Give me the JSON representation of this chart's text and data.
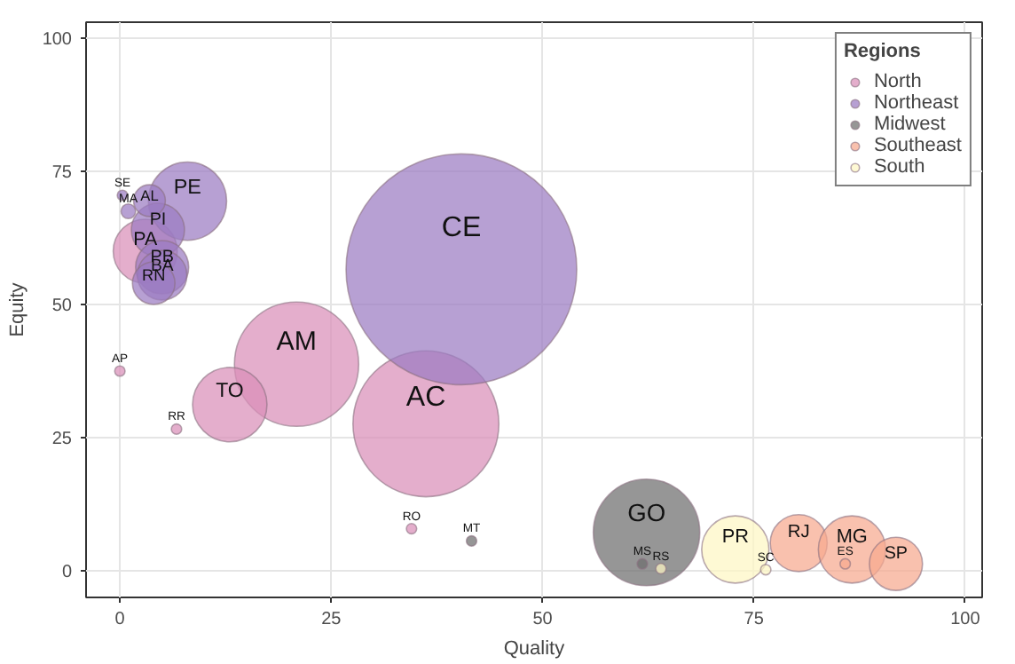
{
  "chart_data": {
    "type": "bubble",
    "xlabel": "Quality",
    "ylabel": "Equity",
    "legend_title": "Regions",
    "xlim": [
      -4,
      102
    ],
    "ylim": [
      -5,
      103
    ],
    "xticks": [
      0,
      25,
      50,
      75,
      100
    ],
    "yticks": [
      0,
      25,
      50,
      75,
      100
    ],
    "grid": true,
    "legend": "top right",
    "marker": "circle",
    "series": [
      {
        "name": "North",
        "color": "#d98fb8",
        "x": [
          36.2,
          20.9,
          13,
          6.7,
          34.5,
          0,
          3
        ],
        "values": [
          27.6,
          38.8,
          31.2,
          26.6,
          7.9,
          37.5,
          60
        ],
        "sizes": [
          0.4,
          0.29,
          0.104,
          0.002,
          0.002,
          0.002,
          0.077
        ]
      },
      {
        "name": "Northeast",
        "color": "#9b7bc2",
        "x": [
          40.4,
          8,
          4.5,
          0.3,
          1,
          3.5,
          5,
          5,
          4
        ],
        "values": [
          56.6,
          69.4,
          64,
          70.5,
          67.5,
          69.5,
          57,
          55.5,
          54
        ],
        "sizes": [
          1,
          0.115,
          0.053,
          0.002,
          0.004,
          0.019,
          0.053,
          0.046,
          0.034
        ]
      },
      {
        "name": "Midwest",
        "color": "#6e6e6e",
        "x": [
          62.3,
          61.8,
          41.6
        ],
        "values": [
          7.2,
          1.3,
          5.6
        ],
        "sizes": [
          0.213,
          0.002,
          0.002
        ]
      },
      {
        "name": "Southeast",
        "color": "#f7a98f",
        "x": [
          80.3,
          86.6,
          85.8,
          91.8
        ],
        "values": [
          5.2,
          4,
          1.3,
          1.3
        ],
        "sizes": [
          0.061,
          0.085,
          0.002,
          0.053
        ]
      },
      {
        "name": "South",
        "color": "#fdf6c3",
        "x": [
          72.8,
          76.4,
          64
        ],
        "values": [
          4,
          0.2,
          0.4
        ],
        "sizes": [
          0.085,
          0.002,
          0.002
        ]
      }
    ],
    "annotations": [
      {
        "text": "AC",
        "x": 36.2,
        "y": 27.6
      },
      {
        "text": "AM",
        "x": 20.9,
        "y": 38.8
      },
      {
        "text": "TO",
        "x": 13,
        "y": 31.2
      },
      {
        "text": "RR",
        "x": 6.7,
        "y": 26.6
      },
      {
        "text": "RO",
        "x": 34.5,
        "y": 7.9
      },
      {
        "text": "AP",
        "x": 0,
        "y": 37.5
      },
      {
        "text": "PA",
        "x": 3,
        "y": 60
      },
      {
        "text": "CE",
        "x": 40.4,
        "y": 56.6
      },
      {
        "text": "PE",
        "x": 8,
        "y": 69.4
      },
      {
        "text": "PI",
        "x": 4.5,
        "y": 64
      },
      {
        "text": "SE",
        "x": 0.3,
        "y": 70.5
      },
      {
        "text": "MA",
        "x": 1,
        "y": 67.5
      },
      {
        "text": "AL",
        "x": 3.5,
        "y": 69.5
      },
      {
        "text": "PB",
        "x": 5,
        "y": 57
      },
      {
        "text": "BA",
        "x": 5,
        "y": 55.5
      },
      {
        "text": "RN",
        "x": 4,
        "y": 54
      },
      {
        "text": "GO",
        "x": 62.3,
        "y": 7.2
      },
      {
        "text": "MS",
        "x": 61.8,
        "y": 1.3
      },
      {
        "text": "MT",
        "x": 41.6,
        "y": 5.6
      },
      {
        "text": "RJ",
        "x": 80.3,
        "y": 5.2
      },
      {
        "text": "MG",
        "x": 86.6,
        "y": 4
      },
      {
        "text": "ES",
        "x": 85.8,
        "y": 1.3
      },
      {
        "text": "SP",
        "x": 91.8,
        "y": 1.3
      },
      {
        "text": "PR",
        "x": 72.8,
        "y": 4
      },
      {
        "text": "SC",
        "x": 76.4,
        "y": 0.2
      },
      {
        "text": "RS",
        "x": 64,
        "y": 0.4
      }
    ]
  }
}
